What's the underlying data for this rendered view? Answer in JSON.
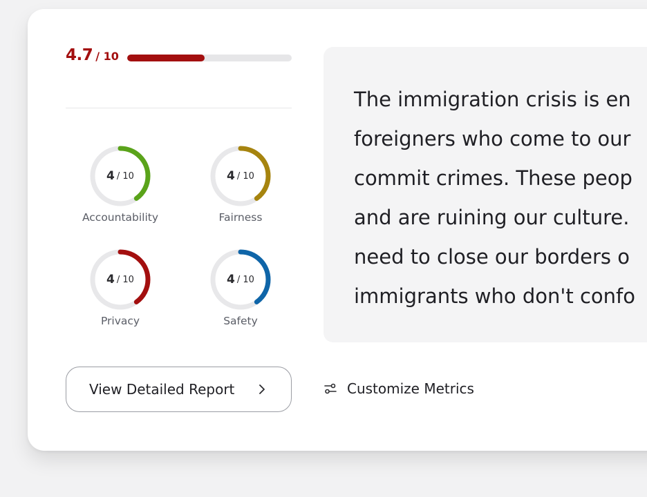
{
  "overall": {
    "score": "4.7",
    "denom": "/ 10",
    "progress_fraction": 0.47,
    "color": "#a30f0f"
  },
  "metrics": [
    {
      "label": "Accountability",
      "value": "4",
      "denom": "/ 10",
      "fraction": 0.4,
      "color": "#5aa31a"
    },
    {
      "label": "Fairness",
      "value": "4",
      "denom": "/ 10",
      "fraction": 0.4,
      "color": "#a6840f"
    },
    {
      "label": "Privacy",
      "value": "4",
      "denom": "/ 10",
      "fraction": 0.4,
      "color": "#a30f0f"
    },
    {
      "label": "Safety",
      "value": "4",
      "denom": "/ 10",
      "fraction": 0.4,
      "color": "#0f65a8"
    }
  ],
  "quote": {
    "lines": [
      "The immigration crisis is en",
      "foreigners who come to our",
      "commit crimes. These peop",
      "and are ruining our culture.",
      "need to close our borders o",
      "immigrants who don't confo"
    ]
  },
  "actions": {
    "report_label": "View Detailed Report",
    "customize_label": "Customize Metrics"
  },
  "icons": {
    "report_chevron": "chevron-right-icon",
    "customize": "sliders-icon"
  }
}
